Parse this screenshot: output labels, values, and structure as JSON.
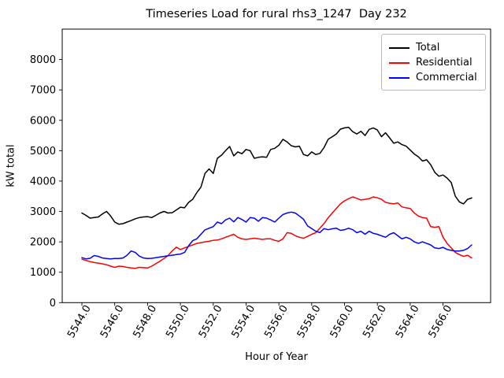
{
  "figure": {
    "background": "#ffffff"
  },
  "chart_data": {
    "type": "line",
    "title": "Timeseries Load for rural rhs3_1247  Day 232",
    "xlabel": "Hour of Year",
    "ylabel": "kW total",
    "xlim": [
      5542.8,
      5568.9
    ],
    "ylim": [
      0,
      9000
    ],
    "grid": false,
    "legend_position": "upper right",
    "xticks": [
      5544,
      5546,
      5548,
      5550,
      5552,
      5554,
      5556,
      5558,
      5560,
      5562,
      5564,
      5566
    ],
    "xtick_labels": [
      "5544.0",
      "5546.0",
      "5548.0",
      "5550.0",
      "5552.0",
      "5554.0",
      "5556.0",
      "5558.0",
      "5560.0",
      "5562.0",
      "5564.0",
      "5566.0"
    ],
    "yticks": [
      0,
      1000,
      2000,
      3000,
      4000,
      5000,
      6000,
      7000,
      8000
    ],
    "ytick_labels": [
      "0",
      "1000",
      "2000",
      "3000",
      "4000",
      "5000",
      "6000",
      "7000",
      "8000"
    ],
    "x_start": 5544.0,
    "x_step_hours": 0.25,
    "n_points": 96,
    "x": [
      5544.0,
      5544.25,
      5544.5,
      5544.75,
      5545.0,
      5545.25,
      5545.5,
      5545.75,
      5546.0,
      5546.25,
      5546.5,
      5546.75,
      5547.0,
      5547.25,
      5547.5,
      5547.75,
      5548.0,
      5548.25,
      5548.5,
      5548.75,
      5549.0,
      5549.25,
      5549.5,
      5549.75,
      5550.0,
      5550.25,
      5550.5,
      5550.75,
      5551.0,
      5551.25,
      5551.5,
      5551.75,
      5552.0,
      5552.25,
      5552.5,
      5552.75,
      5553.0,
      5553.25,
      5553.5,
      5553.75,
      5554.0,
      5554.25,
      5554.5,
      5554.75,
      5555.0,
      5555.25,
      5555.5,
      5555.75,
      5556.0,
      5556.25,
      5556.5,
      5556.75,
      5557.0,
      5557.25,
      5557.5,
      5557.75,
      5558.0,
      5558.25,
      5558.5,
      5558.75,
      5559.0,
      5559.25,
      5559.5,
      5559.75,
      5560.0,
      5560.25,
      5560.5,
      5560.75,
      5561.0,
      5561.25,
      5561.5,
      5561.75,
      5562.0,
      5562.25,
      5562.5,
      5562.75,
      5563.0,
      5563.25,
      5563.5,
      5563.75,
      5564.0,
      5564.25,
      5564.5,
      5564.75,
      5565.0,
      5565.25,
      5565.5,
      5565.75,
      5566.0,
      5566.25,
      5566.5,
      5566.75,
      5567.0,
      5567.25,
      5567.5,
      5567.75
    ],
    "series": [
      {
        "name": "Total",
        "color": "#000000",
        "values": [
          2950,
          2870,
          2780,
          2800,
          2820,
          2920,
          3000,
          2850,
          2650,
          2580,
          2600,
          2650,
          2700,
          2760,
          2800,
          2820,
          2830,
          2800,
          2870,
          2950,
          3000,
          2950,
          2960,
          3050,
          3140,
          3120,
          3300,
          3400,
          3620,
          3800,
          4250,
          4400,
          4250,
          4750,
          4850,
          5000,
          5140,
          4830,
          4960,
          4900,
          5040,
          5000,
          4750,
          4780,
          4800,
          4780,
          5040,
          5080,
          5180,
          5375,
          5290,
          5165,
          5125,
          5150,
          4875,
          4830,
          4960,
          4875,
          4910,
          5100,
          5375,
          5460,
          5550,
          5710,
          5750,
          5770,
          5625,
          5550,
          5640,
          5500,
          5700,
          5750,
          5680,
          5460,
          5590,
          5420,
          5245,
          5290,
          5200,
          5150,
          5020,
          4890,
          4800,
          4660,
          4700,
          4540,
          4290,
          4160,
          4200,
          4100,
          3950,
          3500,
          3315,
          3250,
          3400,
          3445
        ]
      },
      {
        "name": "Residential",
        "color": "#ff0000",
        "values": [
          1430,
          1390,
          1350,
          1320,
          1300,
          1275,
          1250,
          1200,
          1160,
          1200,
          1190,
          1160,
          1140,
          1130,
          1160,
          1150,
          1140,
          1200,
          1280,
          1360,
          1450,
          1550,
          1700,
          1825,
          1750,
          1800,
          1850,
          1900,
          1950,
          1975,
          2000,
          2020,
          2050,
          2060,
          2100,
          2150,
          2200,
          2250,
          2150,
          2100,
          2080,
          2100,
          2120,
          2100,
          2080,
          2100,
          2100,
          2050,
          2020,
          2100,
          2300,
          2280,
          2200,
          2150,
          2120,
          2180,
          2250,
          2300,
          2450,
          2600,
          2790,
          2950,
          3100,
          3250,
          3350,
          3420,
          3480,
          3430,
          3380,
          3400,
          3420,
          3480,
          3450,
          3400,
          3300,
          3270,
          3250,
          3280,
          3150,
          3120,
          3100,
          2950,
          2850,
          2800,
          2780,
          2500,
          2480,
          2500,
          2150,
          1950,
          1800,
          1650,
          1580,
          1520,
          1560,
          1470
        ]
      },
      {
        "name": "Commercial",
        "color": "#0000ff",
        "values": [
          1480,
          1440,
          1460,
          1550,
          1520,
          1470,
          1450,
          1440,
          1450,
          1455,
          1470,
          1560,
          1700,
          1650,
          1530,
          1470,
          1450,
          1460,
          1480,
          1500,
          1520,
          1545,
          1560,
          1580,
          1600,
          1650,
          1870,
          2040,
          2100,
          2250,
          2395,
          2450,
          2500,
          2650,
          2600,
          2720,
          2780,
          2660,
          2800,
          2740,
          2650,
          2800,
          2780,
          2680,
          2800,
          2780,
          2720,
          2650,
          2780,
          2900,
          2950,
          2980,
          2950,
          2850,
          2745,
          2525,
          2435,
          2350,
          2305,
          2435,
          2400,
          2430,
          2450,
          2380,
          2400,
          2450,
          2400,
          2300,
          2350,
          2250,
          2350,
          2280,
          2250,
          2200,
          2150,
          2250,
          2300,
          2200,
          2100,
          2150,
          2100,
          2000,
          1950,
          2000,
          1950,
          1900,
          1800,
          1780,
          1820,
          1750,
          1720,
          1700,
          1700,
          1720,
          1780,
          1900
        ]
      }
    ]
  }
}
